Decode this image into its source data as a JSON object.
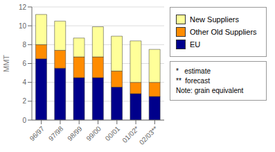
{
  "chart_data": {
    "type": "bar",
    "stacked": true,
    "categories": [
      "96/97",
      "97/98",
      "98/99",
      "99/00",
      "00/01",
      "01/02*",
      "02/03**"
    ],
    "series": [
      {
        "name": "EU",
        "color": "#00008B",
        "values": [
          6.5,
          5.5,
          4.5,
          4.5,
          3.5,
          2.8,
          2.5
        ]
      },
      {
        "name": "Other Old Suppliers",
        "color": "#FF8C00",
        "values": [
          1.5,
          1.9,
          2.2,
          2.2,
          1.7,
          1.2,
          1.5
        ]
      },
      {
        "name": "New Suppliers",
        "color": "#FFFF99",
        "values": [
          3.2,
          3.1,
          2.0,
          3.2,
          3.7,
          4.4,
          3.5
        ]
      }
    ],
    "ylabel": "MMT",
    "ylim": [
      0,
      12
    ],
    "yticks": [
      0,
      2,
      4,
      6,
      8,
      10,
      12
    ],
    "grid": true,
    "legend": "upper right",
    "annotations": [
      "*   estimate",
      "**  forecast",
      "Note: grain equivalent"
    ]
  }
}
